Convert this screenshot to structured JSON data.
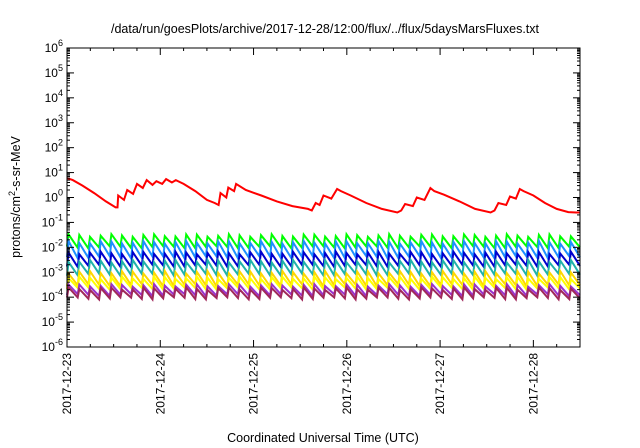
{
  "chart_data": {
    "type": "line",
    "title": "/data/run/goesPlots/archive/2017-12-28/12:00/flux/../flux/5daysMarsFluxes.txt",
    "xlabel": "Coordinated Universal Time (UTC)",
    "ylabel": {
      "base": "protons/cm",
      "sup": "2",
      "rest": "-s-sr-MeV"
    },
    "y_scale": "log",
    "ylim": [
      1e-06,
      1000000.0
    ],
    "x_range": [
      "2017-12-23 00:00",
      "2017-12-28 12:00"
    ],
    "grid": false,
    "legend": "none",
    "x_ticks": [
      "2017-12-23",
      "2017-12-24",
      "2017-12-25",
      "2017-12-26",
      "2017-12-27",
      "2017-12-28"
    ],
    "y_ticks": [
      {
        "base": "10",
        "exp": "-6"
      },
      {
        "base": "10",
        "exp": "-5"
      },
      {
        "base": "10",
        "exp": "-4"
      },
      {
        "base": "10",
        "exp": "-3"
      },
      {
        "base": "10",
        "exp": "-2"
      },
      {
        "base": "10",
        "exp": "-1"
      },
      {
        "base": "10",
        "exp": "0"
      },
      {
        "base": "10",
        "exp": "1"
      },
      {
        "base": "10",
        "exp": "2"
      },
      {
        "base": "10",
        "exp": "3"
      },
      {
        "base": "10",
        "exp": "4"
      },
      {
        "base": "10",
        "exp": "5"
      },
      {
        "base": "10",
        "exp": "6"
      }
    ],
    "series": [
      {
        "color": "#ff0000",
        "x": [
          "2017-12-23 00:00",
          "2017-12-23 01:30",
          "2017-12-23 04:00",
          "2017-12-23 07:00",
          "2017-12-23 10:00",
          "2017-12-23 12:30",
          "2017-12-23 13:00",
          "2017-12-23 13:10",
          "2017-12-23 14:40",
          "2017-12-23 15:30",
          "2017-12-23 17:00",
          "2017-12-23 18:00",
          "2017-12-23 19:30",
          "2017-12-23 20:30",
          "2017-12-23 22:00",
          "2017-12-23 23:00",
          "2017-12-24 00:30",
          "2017-12-24 01:30",
          "2017-12-24 03:00",
          "2017-12-24 04:00",
          "2017-12-24 06:00",
          "2017-12-24 09:00",
          "2017-12-24 12:00",
          "2017-12-24 14:00",
          "2017-12-24 15:00",
          "2017-12-24 15:30",
          "2017-12-24 17:00",
          "2017-12-24 17:30",
          "2017-12-24 19:00",
          "2017-12-24 19:30",
          "2017-12-24 22:00",
          "2017-12-25 02:00",
          "2017-12-25 06:00",
          "2017-12-25 10:00",
          "2017-12-25 14:00",
          "2017-12-25 15:00",
          "2017-12-25 16:00",
          "2017-12-25 17:00",
          "2017-12-25 18:00",
          "2017-12-25 20:00",
          "2017-12-25 21:30",
          "2017-12-25 22:30",
          "2017-12-26 01:00",
          "2017-12-26 05:00",
          "2017-12-26 09:00",
          "2017-12-26 13:00",
          "2017-12-26 14:00",
          "2017-12-26 15:00",
          "2017-12-26 17:00",
          "2017-12-26 18:00",
          "2017-12-26 20:00",
          "2017-12-26 21:30",
          "2017-12-26 22:30",
          "2017-12-27 01:00",
          "2017-12-27 05:00",
          "2017-12-27 09:00",
          "2017-12-27 13:00",
          "2017-12-27 14:00",
          "2017-12-27 15:00",
          "2017-12-27 17:00",
          "2017-12-27 18:00",
          "2017-12-27 19:30",
          "2017-12-27 20:30",
          "2017-12-27 21:30",
          "2017-12-28 00:00",
          "2017-12-28 03:00",
          "2017-12-28 06:00",
          "2017-12-28 09:00",
          "2017-12-28 11:00",
          "2017-12-28 12:00"
        ],
        "y": [
          6,
          5,
          3,
          1.5,
          0.7,
          0.4,
          0.4,
          1.2,
          0.8,
          2,
          1.4,
          3.5,
          2.4,
          5,
          3.2,
          4.5,
          3.5,
          5.5,
          4,
          5,
          3.5,
          1.8,
          0.8,
          0.6,
          0.5,
          1.5,
          1,
          2.5,
          1.8,
          3.5,
          2,
          1.2,
          0.7,
          0.45,
          0.35,
          0.3,
          0.6,
          0.5,
          1.2,
          0.9,
          2.2,
          1.8,
          1.2,
          0.6,
          0.35,
          0.25,
          0.3,
          0.55,
          0.45,
          1,
          0.8,
          2.4,
          1.8,
          1.3,
          0.7,
          0.35,
          0.25,
          0.3,
          0.6,
          0.5,
          1.1,
          0.9,
          2.2,
          1.8,
          1.2,
          0.6,
          0.35,
          0.26,
          0.25,
          0.25
        ]
      },
      {
        "color": "#00ff00",
        "profile": "sawtooth",
        "top": 0.03,
        "bottom": 0.01,
        "cycles": 48
      },
      {
        "color": "#1e90ff",
        "profile": "sawtooth",
        "top": 0.016,
        "bottom": 0.004,
        "cycles": 48
      },
      {
        "color": "#0000cd",
        "profile": "sawtooth",
        "top": 0.006,
        "bottom": 0.0018,
        "cycles": 48
      },
      {
        "color": "#20b2aa",
        "profile": "sawtooth",
        "top": 0.0028,
        "bottom": 0.0008,
        "cycles": 48
      },
      {
        "color": "#ffd700",
        "profile": "sawtooth",
        "top": 0.001,
        "bottom": 0.0003,
        "cycles": 48
      },
      {
        "color": "#ffff00",
        "profile": "sawtooth",
        "top": 0.0006,
        "bottom": 0.00022,
        "cycles": 48
      },
      {
        "color": "#9932cc",
        "profile": "sawtooth",
        "top": 0.0003,
        "bottom": 0.00012,
        "cycles": 48
      },
      {
        "color": "#a0285a",
        "profile": "sawtooth",
        "top": 0.00022,
        "bottom": 9e-05,
        "cycles": 48
      }
    ]
  }
}
